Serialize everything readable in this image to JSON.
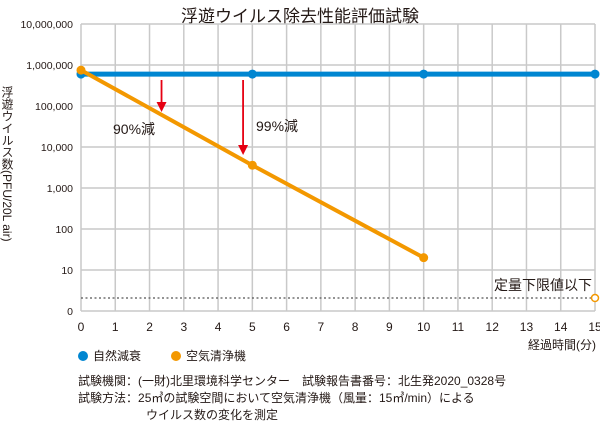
{
  "chart_data": {
    "type": "line",
    "title": "浮遊ウイルス除去性能評価試験",
    "xlabel": "経過時間(分)",
    "ylabel": "浮遊ウイルス数(PFU/20L air)",
    "y_scale": "log",
    "xlim": [
      0,
      15
    ],
    "x_ticks": [
      "0",
      "1",
      "2",
      "3",
      "4",
      "5",
      "6",
      "7",
      "8",
      "9",
      "10",
      "11",
      "12",
      "13",
      "14",
      "15"
    ],
    "y_ticks": [
      "10,000,000",
      "1,000,000",
      "100,000",
      "10,000",
      "1,000",
      "100",
      "10",
      "0"
    ],
    "grid": true,
    "legend_position": "bottom-left",
    "series": [
      {
        "name": "自然減衰",
        "color": "#0086d1",
        "x": [
          0,
          5,
          10,
          15
        ],
        "y": [
          600000,
          600000,
          600000,
          600000
        ]
      },
      {
        "name": "空気清浄機",
        "color": "#f39800",
        "x": [
          0,
          5,
          10
        ],
        "y": [
          750000,
          3600,
          20
        ],
        "below_limit_x": 15
      }
    ],
    "limit_line": {
      "label": "定量下限値以下",
      "style": "dotted"
    },
    "annotations": [
      {
        "label": "90%減",
        "x": 2.35,
        "color": "#e60012"
      },
      {
        "label": "99%減",
        "x": 4.73,
        "color": "#e60012"
      }
    ]
  },
  "notes": {
    "org_label": "試験機関：",
    "org": "(一財)北里環境科学センター　試験報告書番号：北生発2020_0328号",
    "method_label": "試験方法：",
    "method_line1": "25㎥の試験空間において空気清浄機（風量：15㎥/min）による",
    "method_line2": "ウイルス数の変化を測定"
  }
}
